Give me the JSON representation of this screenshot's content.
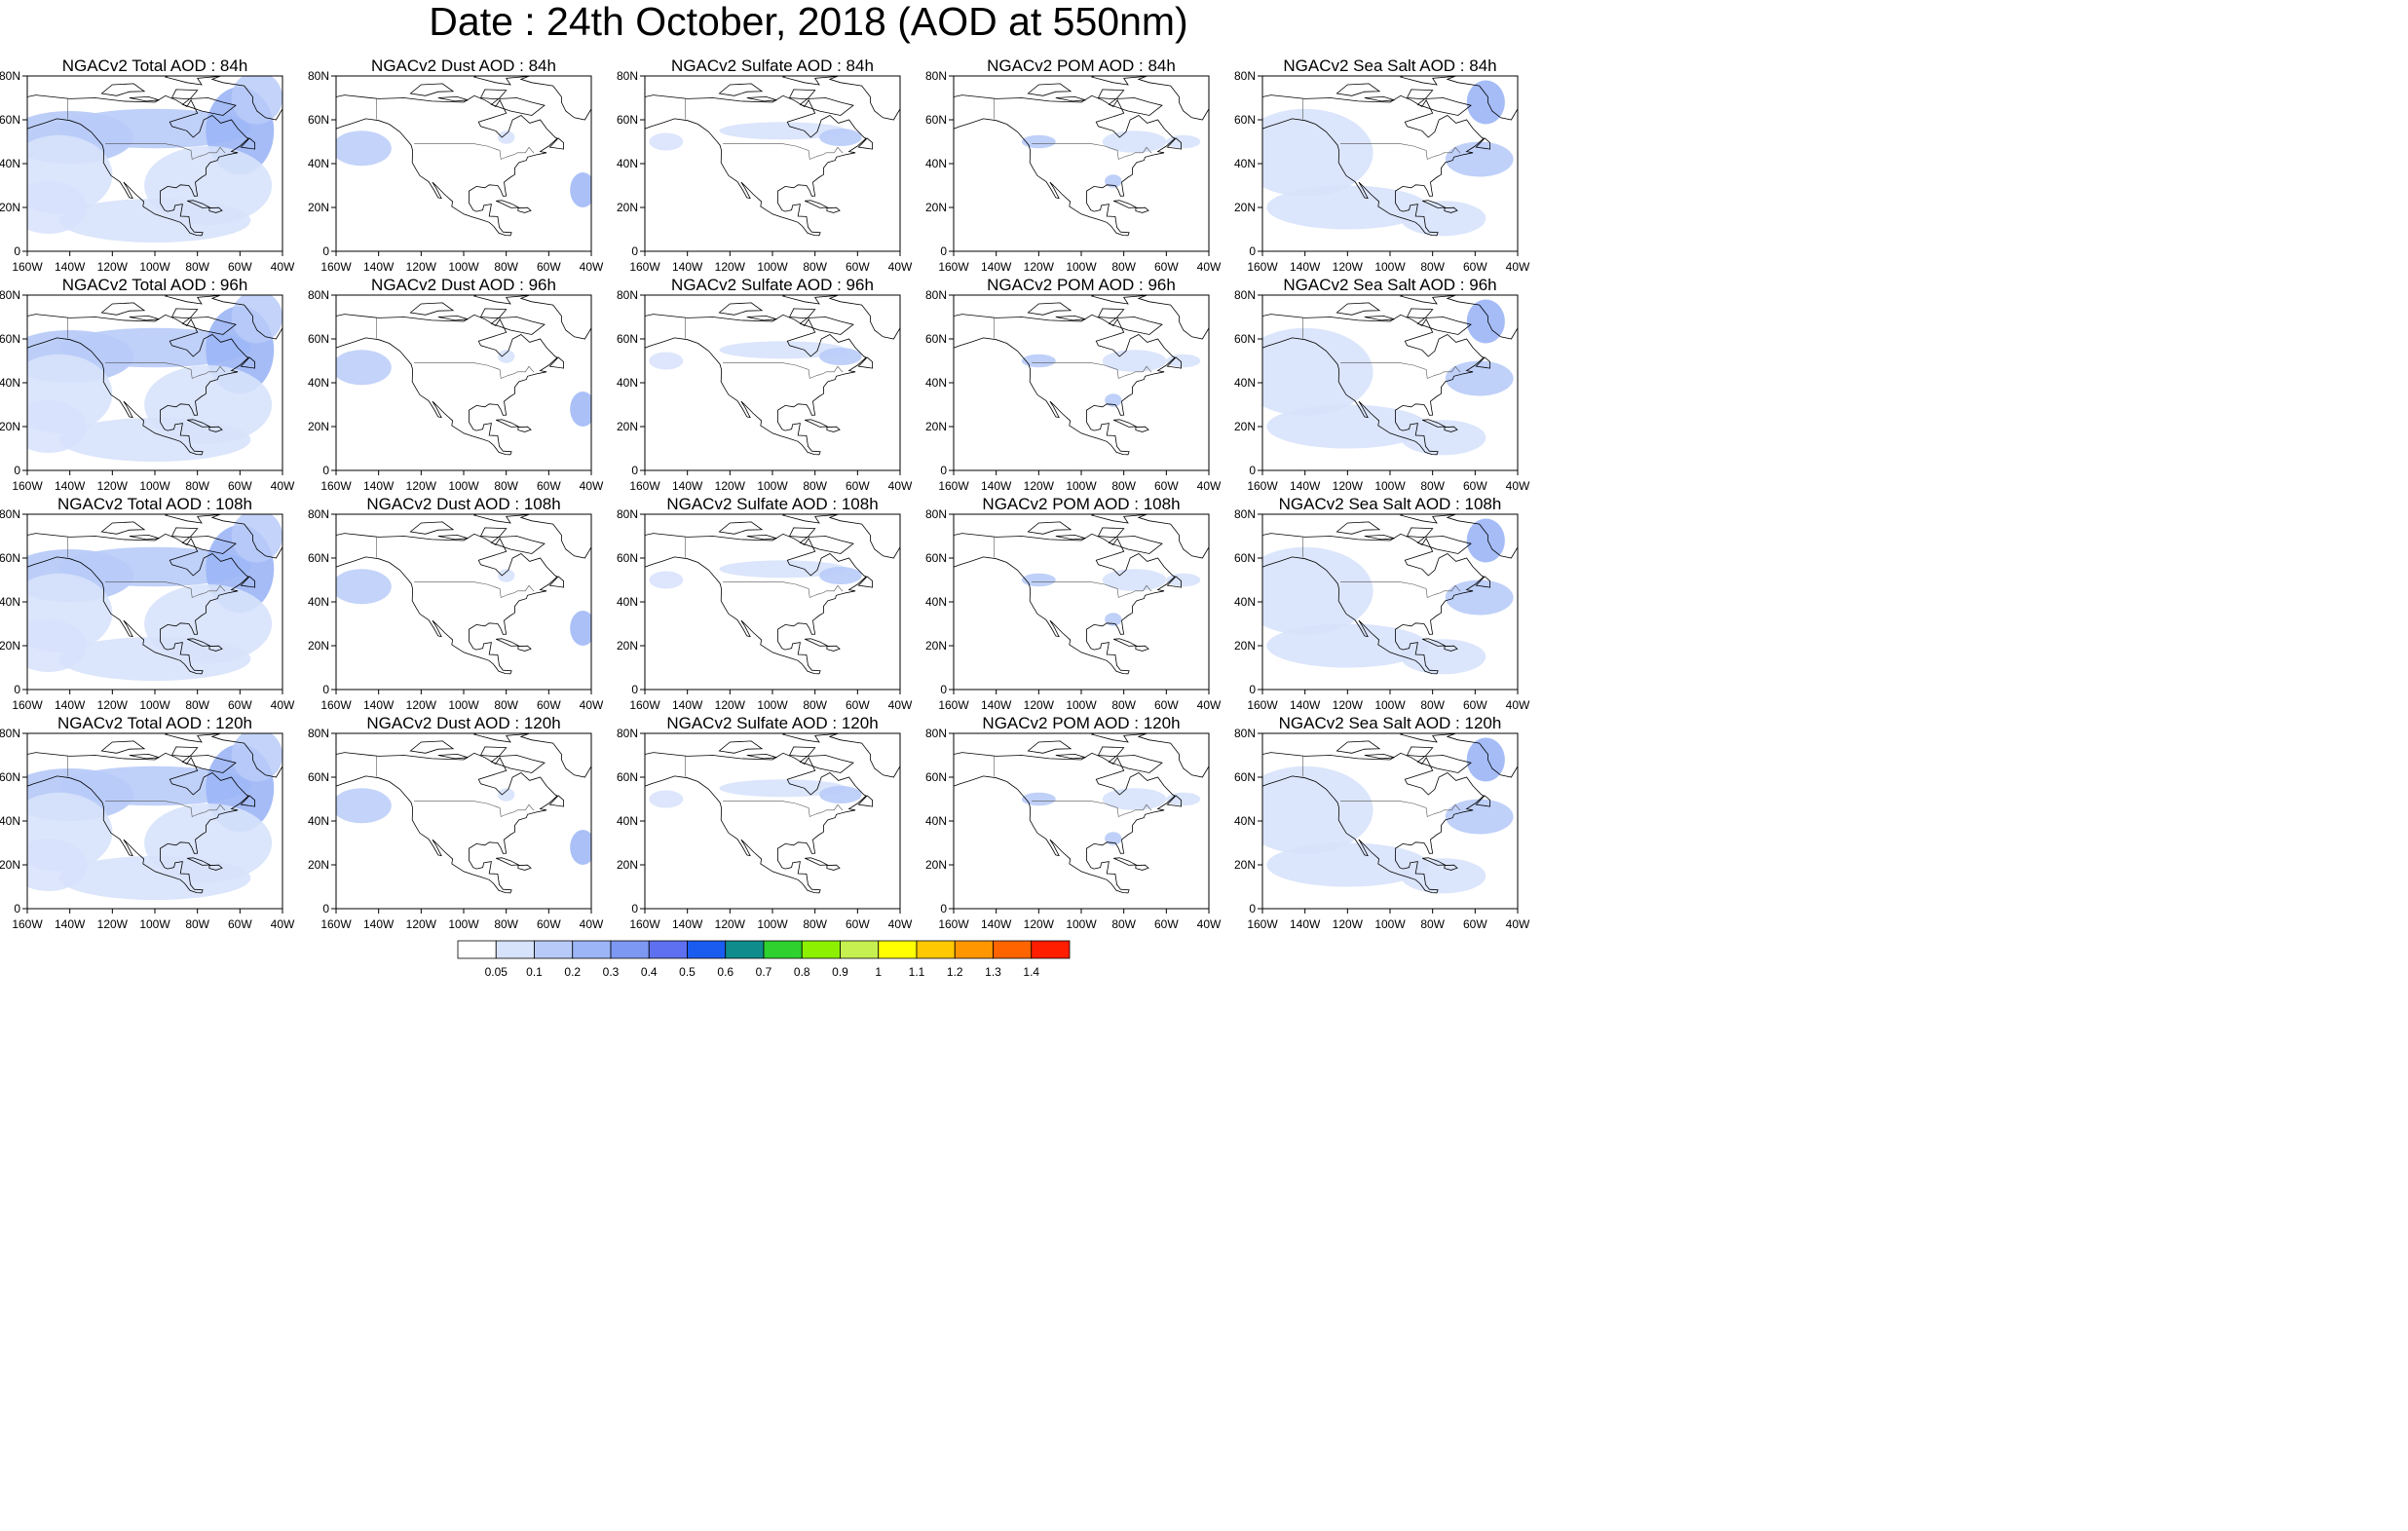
{
  "title": "Date : 24th October, 2018 (AOD at 550nm)",
  "rows": [
    {
      "lead": "84h",
      "panels": [
        "NGACv2 Total AOD : 84h",
        "NGACv2 Dust AOD : 84h",
        "NGACv2 Sulfate AOD : 84h",
        "NGACv2 POM AOD : 84h",
        "NGACv2 Sea Salt AOD : 84h"
      ]
    },
    {
      "lead": "96h",
      "panels": [
        "NGACv2 Total AOD : 96h",
        "NGACv2 Dust AOD : 96h",
        "NGACv2 Sulfate AOD : 96h",
        "NGACv2 POM AOD : 96h",
        "NGACv2 Sea Salt AOD : 96h"
      ]
    },
    {
      "lead": "108h",
      "panels": [
        "NGACv2 Total AOD : 108h",
        "NGACv2 Dust AOD : 108h",
        "NGACv2 Sulfate AOD : 108h",
        "NGACv2 POM AOD : 108h",
        "NGACv2 Sea Salt AOD : 108h"
      ]
    },
    {
      "lead": "120h",
      "panels": [
        "NGACv2 Total AOD : 120h",
        "NGACv2 Dust AOD : 120h",
        "NGACv2 Sulfate AOD : 120h",
        "NGACv2 POM AOD : 120h",
        "NGACv2 Sea Salt  AOD : 120h"
      ]
    }
  ],
  "x_tick_labels": [
    "160W",
    "140W",
    "120W",
    "100W",
    "80W",
    "60W",
    "40W"
  ],
  "y_tick_labels": [
    "0",
    "20N",
    "40N",
    "60N",
    "80N"
  ],
  "map_extent": {
    "lon": [
      -160,
      -40
    ],
    "lat": [
      0,
      80
    ]
  },
  "colorbar": {
    "labels": [
      "0.05",
      "0.1",
      "0.2",
      "0.3",
      "0.4",
      "0.5",
      "0.6",
      "0.7",
      "0.8",
      "0.9",
      "1",
      "1.1",
      "1.2",
      "1.3",
      "1.4"
    ],
    "colors": [
      "#ffffff",
      "#d7e2fb",
      "#b8cbf8",
      "#9bb5f6",
      "#7d98f2",
      "#5e6ff0",
      "#1a5cf0",
      "#108c8c",
      "#2ed12e",
      "#8cf000",
      "#c6f050",
      "#ffff00",
      "#ffc800",
      "#ff9600",
      "#ff6400",
      "#ff1e00"
    ]
  }
}
